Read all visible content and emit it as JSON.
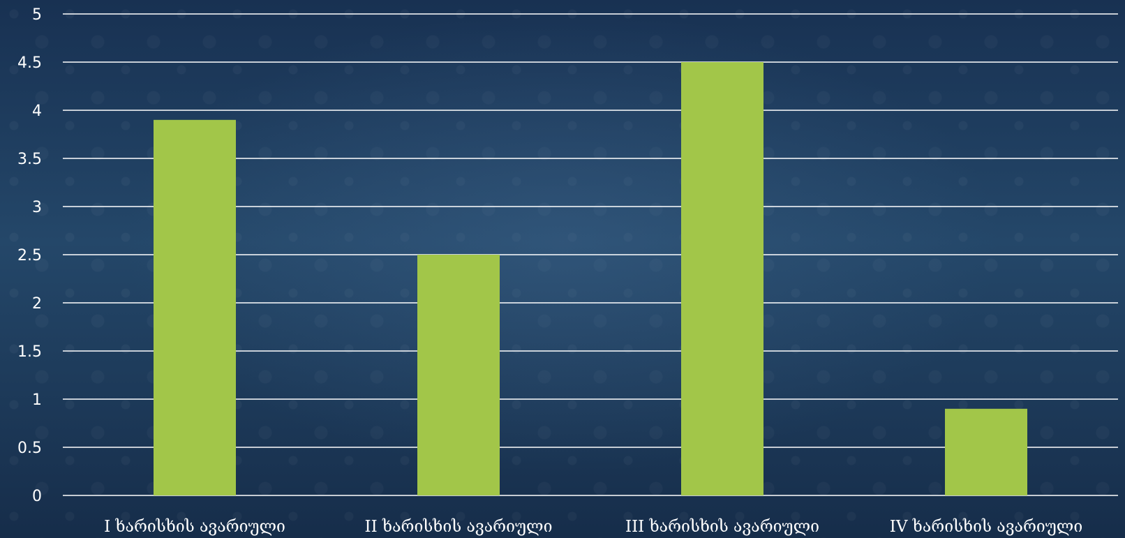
{
  "chart_data": {
    "type": "bar",
    "categories": [
      "I ხარისხის ავარიული",
      "II ხარისხის ავარიული",
      "III ხარისხის ავარიული",
      "IV ხარისხის ავარიული"
    ],
    "values": [
      3.9,
      2.5,
      4.5,
      0.9
    ],
    "title": "",
    "xlabel": "",
    "ylabel": "",
    "ylim": [
      0,
      5
    ],
    "yticks": [
      "0",
      "0.5",
      "1",
      "1.5",
      "2",
      "2.5",
      "3",
      "3.5",
      "4",
      "4.5",
      "5"
    ],
    "grid": true,
    "legend": "none",
    "colors": {
      "bar": "#a2c649",
      "grid": "#ffffff",
      "text": "#ffffff"
    }
  }
}
